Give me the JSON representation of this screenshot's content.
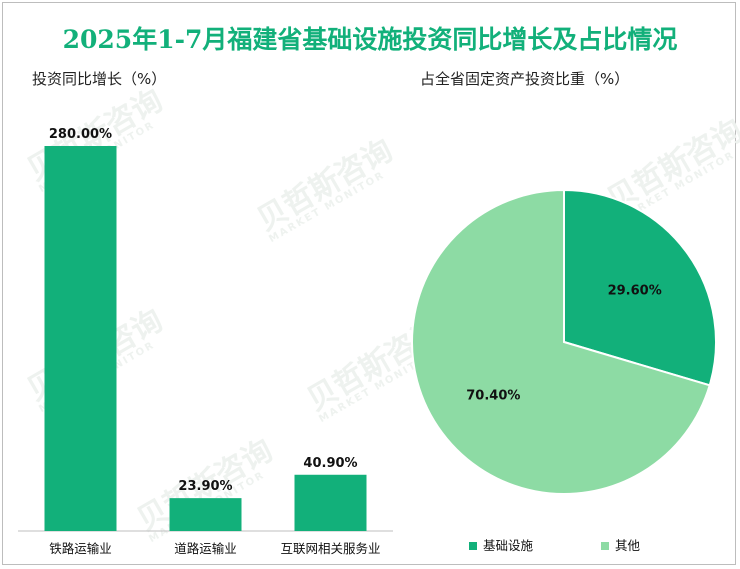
{
  "title": "2025年1-7月福建省基础设施投资同比增长及占比情况",
  "watermark": {
    "text": "贝哲斯咨询",
    "sub": "MARKET MONITOR"
  },
  "colors": {
    "primary": "#12b07a",
    "secondary": "#8ddba4",
    "title": "#12b07a"
  },
  "chart_data": [
    {
      "type": "bar",
      "title": "投资同比增长（%）",
      "categories": [
        "铁路运输业",
        "道路运输业",
        "互联网相关服务业"
      ],
      "values": [
        280.0,
        23.9,
        40.9
      ],
      "labels": [
        "280.00%",
        "23.90%",
        "40.90%"
      ],
      "xlabel": "",
      "ylabel": "",
      "ylim": [
        0,
        280
      ],
      "grid": false
    },
    {
      "type": "pie",
      "title": "占全省固定资产投资比重（%）",
      "categories": [
        "基础设施",
        "其他"
      ],
      "values": [
        29.6,
        70.4
      ],
      "labels": [
        "29.60%",
        "70.40%"
      ],
      "legend": "bottom"
    }
  ]
}
